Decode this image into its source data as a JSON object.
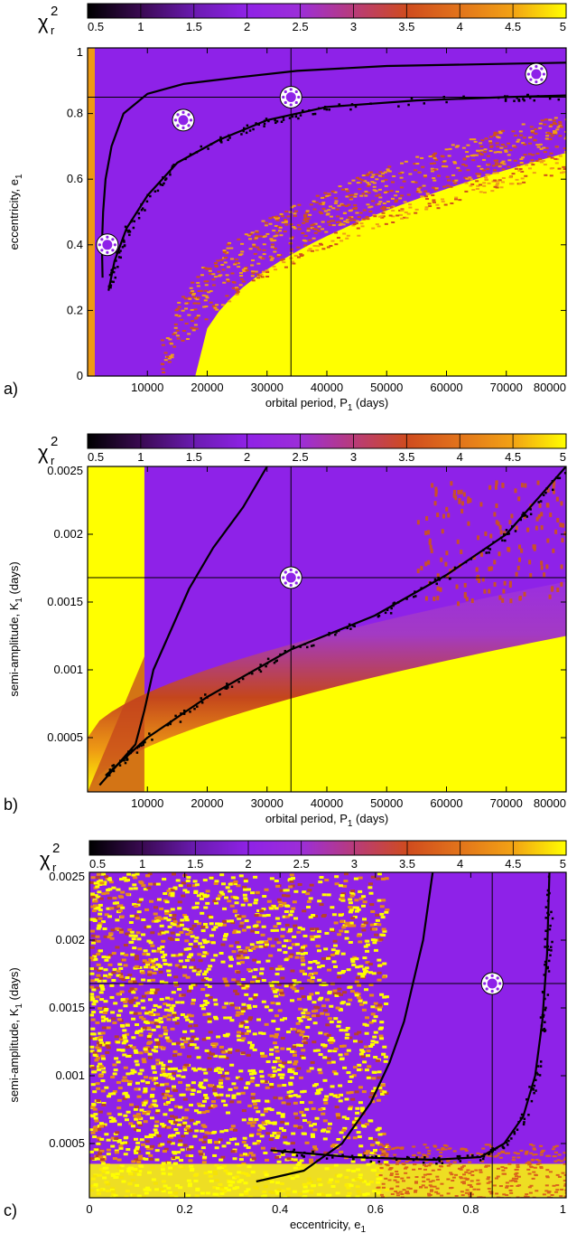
{
  "colorbar": {
    "symbol": "χ",
    "superscript": "2",
    "subscript": "r",
    "ticks": [
      "0.5",
      "1",
      "1.5",
      "2",
      "2.5",
      "3",
      "3.5",
      "4",
      "4.5",
      "5"
    ],
    "min": 0.5,
    "max": 5,
    "stops": [
      "#000000",
      "#3a0a52",
      "#6a1bb0",
      "#8f22e6",
      "#9c2ed8",
      "#b83b7a",
      "#cf4b1e",
      "#e2741b",
      "#f2a214",
      "#ffff00"
    ]
  },
  "chart_data": [
    {
      "type": "heatmap",
      "panel_label": "a)",
      "xlabel_main": "orbital period, P",
      "xlabel_sub": "1",
      "xlabel_tail": " (days)",
      "ylabel_main": "eccentricity, e",
      "ylabel_sub": "1",
      "xlim": [
        0,
        80000
      ],
      "ylim": [
        0,
        1
      ],
      "xticks": [
        "10000",
        "20000",
        "30000",
        "40000",
        "50000",
        "60000",
        "70000",
        "80000"
      ],
      "yticks": [
        "0",
        "0.2",
        "0.4",
        "0.6",
        "0.8",
        "1"
      ],
      "crosshair": {
        "x": 34000,
        "y": 0.85
      },
      "markers": [
        {
          "x": 3300,
          "y": 0.4
        },
        {
          "x": 16000,
          "y": 0.78
        },
        {
          "x": 34000,
          "y": 0.85
        },
        {
          "x": 75000,
          "y": 0.92
        }
      ],
      "contours": [
        [
          [
            2500,
            0.3
          ],
          [
            2400,
            0.4
          ],
          [
            2600,
            0.5
          ],
          [
            3000,
            0.6
          ],
          [
            4000,
            0.7
          ],
          [
            6000,
            0.8
          ],
          [
            10000,
            0.86
          ],
          [
            16000,
            0.89
          ],
          [
            25000,
            0.91
          ],
          [
            35000,
            0.93
          ],
          [
            50000,
            0.945
          ],
          [
            65000,
            0.95
          ],
          [
            80000,
            0.955
          ]
        ],
        [
          [
            3500,
            0.26
          ],
          [
            4500,
            0.35
          ],
          [
            6500,
            0.45
          ],
          [
            10000,
            0.55
          ],
          [
            15000,
            0.65
          ],
          [
            22000,
            0.72
          ],
          [
            30000,
            0.78
          ],
          [
            40000,
            0.82
          ],
          [
            55000,
            0.84
          ],
          [
            70000,
            0.85
          ],
          [
            80000,
            0.855
          ]
        ]
      ]
    },
    {
      "type": "heatmap",
      "panel_label": "b)",
      "xlabel_main": "orbital period, P",
      "xlabel_sub": "1",
      "xlabel_tail": " (days)",
      "ylabel_main": "semi-amplitude, K",
      "ylabel_sub": "1",
      "ylabel_tail": " (days)",
      "xlim": [
        0,
        80000
      ],
      "ylim": [
        0.0001,
        0.0025
      ],
      "xticks": [
        "10000",
        "20000",
        "30000",
        "40000",
        "50000",
        "60000",
        "70000",
        "80000"
      ],
      "yticks": [
        "0.0005",
        "0.001",
        "0.0015",
        "0.002",
        "0.0025"
      ],
      "crosshair": {
        "x": 34000,
        "y": 0.00168
      },
      "markers": [
        {
          "x": 34000,
          "y": 0.00168
        }
      ],
      "contours": [
        [
          [
            2000,
            0.00015
          ],
          [
            5000,
            0.0003
          ],
          [
            8000,
            0.00045
          ],
          [
            9500,
            0.0007
          ],
          [
            11000,
            0.001
          ],
          [
            14000,
            0.0013
          ],
          [
            17000,
            0.0016
          ],
          [
            21000,
            0.0019
          ],
          [
            26000,
            0.0022
          ],
          [
            30000,
            0.0025
          ]
        ],
        [
          [
            3000,
            0.00022
          ],
          [
            10000,
            0.0005
          ],
          [
            20000,
            0.0008
          ],
          [
            34000,
            0.00115
          ],
          [
            48000,
            0.0014
          ],
          [
            60000,
            0.0017
          ],
          [
            70000,
            0.002
          ],
          [
            80000,
            0.0025
          ]
        ]
      ]
    },
    {
      "type": "heatmap",
      "panel_label": "c)",
      "xlabel_main": "eccentricity, e",
      "xlabel_sub": "1",
      "xlabel_tail": "",
      "ylabel_main": "semi-amplitude, K",
      "ylabel_sub": "1",
      "ylabel_tail": " (days)",
      "xlim": [
        0,
        1
      ],
      "ylim": [
        0.0001,
        0.0025
      ],
      "xticks": [
        "0",
        "0.2",
        "0.4",
        "0.6",
        "0.8",
        "1"
      ],
      "yticks": [
        "0.0005",
        "0.001",
        "0.0015",
        "0.002",
        "0.0025"
      ],
      "crosshair": {
        "x": 0.845,
        "y": 0.00168
      },
      "markers": [
        {
          "x": 0.845,
          "y": 0.00168
        }
      ],
      "contours": [
        [
          [
            0.35,
            0.00022
          ],
          [
            0.45,
            0.0003
          ],
          [
            0.53,
            0.0005
          ],
          [
            0.59,
            0.0008
          ],
          [
            0.63,
            0.0011
          ],
          [
            0.66,
            0.0014
          ],
          [
            0.68,
            0.0017
          ],
          [
            0.7,
            0.002
          ],
          [
            0.72,
            0.0025
          ]
        ],
        [
          [
            0.38,
            0.00045
          ],
          [
            0.55,
            0.0004
          ],
          [
            0.72,
            0.00038
          ],
          [
            0.82,
            0.0004
          ],
          [
            0.87,
            0.0005
          ],
          [
            0.91,
            0.0007
          ],
          [
            0.935,
            0.001
          ],
          [
            0.95,
            0.0014
          ],
          [
            0.96,
            0.0019
          ],
          [
            0.965,
            0.0025
          ]
        ]
      ]
    }
  ]
}
